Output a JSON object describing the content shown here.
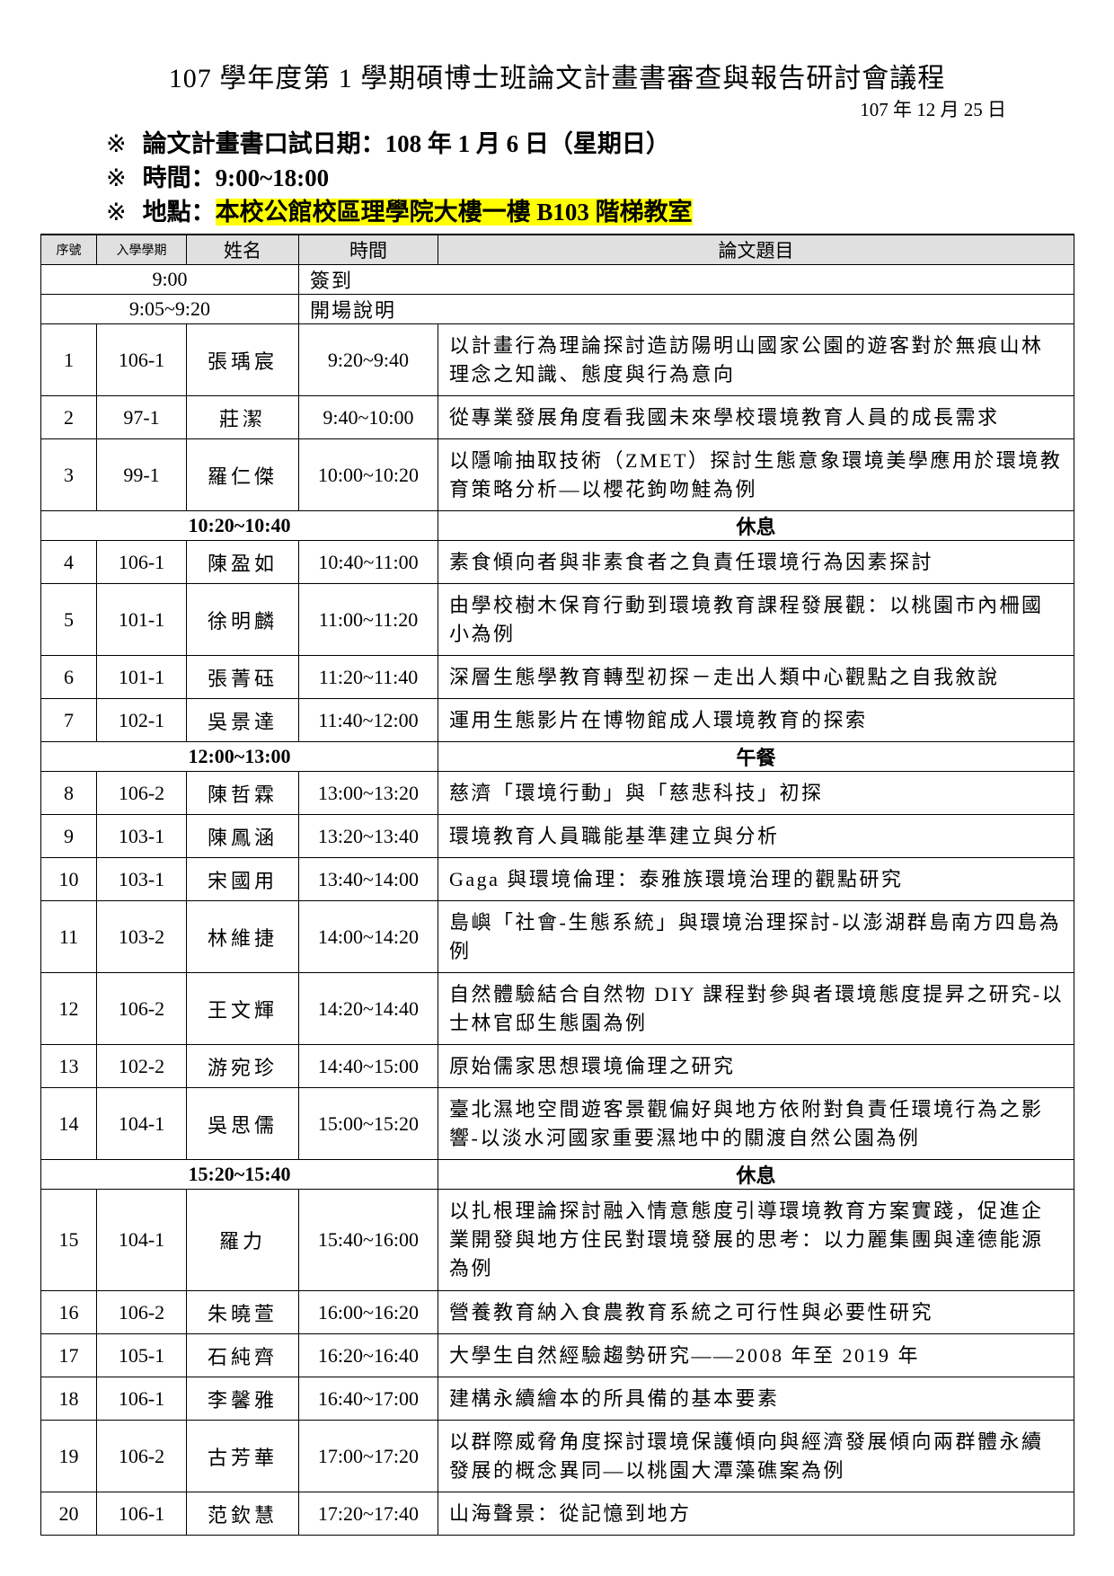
{
  "header": {
    "title": "107 學年度第 1 學期碩博士班論文計畫書審查與報告研討會議程",
    "date": "107 年 12 月 25 日",
    "notes": [
      {
        "mark": "※",
        "label": "論文計畫書口試日期：",
        "value": "108 年 1 月 6 日（星期日）"
      },
      {
        "mark": "※",
        "label": "時間：",
        "value": "9:00~18:00"
      },
      {
        "mark": "※",
        "label": "地點：",
        "value": "本校公館校區理學院大樓一樓 B103 階梯教室",
        "highlight": "#ffff00"
      }
    ]
  },
  "table": {
    "columns": [
      "序號",
      "入學學期",
      "姓名",
      "時間",
      "論文題目"
    ],
    "opening": [
      {
        "time": "9:00",
        "label": "簽到"
      },
      {
        "time": "9:05~9:20",
        "label": "開場說明"
      }
    ],
    "rows": [
      {
        "no": "1",
        "term": "106-1",
        "name": "張瑀宸",
        "time": "9:20~9:40",
        "title": "以計畫行為理論探討造訪陽明山國家公園的遊客對於無痕山林理念之知識、態度與行為意向"
      },
      {
        "no": "2",
        "term": "97-1",
        "name": "莊潔",
        "time": "9:40~10:00",
        "title": "從專業發展角度看我國未來學校環境教育人員的成長需求"
      },
      {
        "no": "3",
        "term": "99-1",
        "name": "羅仁傑",
        "time": "10:00~10:20",
        "title": "以隱喻抽取技術（ZMET）探討生態意象環境美學應用於環境教育策略分析—以櫻花鉤吻鮭為例"
      },
      {
        "break": true,
        "time": "10:20~10:40",
        "label": "休息"
      },
      {
        "no": "4",
        "term": "106-1",
        "name": "陳盈如",
        "time": "10:40~11:00",
        "title": "素食傾向者與非素食者之負責任環境行為因素探討"
      },
      {
        "no": "5",
        "term": "101-1",
        "name": "徐明麟",
        "time": "11:00~11:20",
        "title": "由學校樹木保育行動到環境教育課程發展觀：以桃園市內柵國小為例"
      },
      {
        "no": "6",
        "term": "101-1",
        "name": "張菁砡",
        "time": "11:20~11:40",
        "title": "深層生態學教育轉型初探－走出人類中心觀點之自我敘說"
      },
      {
        "no": "7",
        "term": "102-1",
        "name": "吳景達",
        "time": "11:40~12:00",
        "title": "運用生態影片在博物館成人環境教育的探索"
      },
      {
        "break": true,
        "time": "12:00~13:00",
        "label": "午餐"
      },
      {
        "no": "8",
        "term": "106-2",
        "name": "陳哲霖",
        "time": "13:00~13:20",
        "title": "慈濟「環境行動」與「慈悲科技」初探"
      },
      {
        "no": "9",
        "term": "103-1",
        "name": "陳鳳涵",
        "time": "13:20~13:40",
        "title": "環境教育人員職能基準建立與分析"
      },
      {
        "no": "10",
        "term": "103-1",
        "name": "宋國用",
        "time": "13:40~14:00",
        "title": "Gaga 與環境倫理：泰雅族環境治理的觀點研究"
      },
      {
        "no": "11",
        "term": "103-2",
        "name": "林維捷",
        "time": "14:00~14:20",
        "title": "島嶼「社會-生態系統」與環境治理探討-以澎湖群島南方四島為例"
      },
      {
        "no": "12",
        "term": "106-2",
        "name": "王文輝",
        "time": "14:20~14:40",
        "title": "自然體驗結合自然物 DIY 課程對參與者環境態度提昇之研究-以士林官邸生態園為例"
      },
      {
        "no": "13",
        "term": "102-2",
        "name": "游宛珍",
        "time": "14:40~15:00",
        "title": "原始儒家思想環境倫理之研究"
      },
      {
        "no": "14",
        "term": "104-1",
        "name": "吳思儒",
        "time": "15:00~15:20",
        "title": "臺北濕地空間遊客景觀偏好與地方依附對負責任環境行為之影響-以淡水河國家重要濕地中的關渡自然公園為例"
      },
      {
        "break": true,
        "time": "15:20~15:40",
        "label": "休息"
      },
      {
        "no": "15",
        "term": "104-1",
        "name": "羅力",
        "time": "15:40~16:00",
        "title": "以扎根理論探討融入情意態度引導環境教育方案實踐，促進企業開發與地方住民對環境發展的思考：以力麗集團與達德能源為例"
      },
      {
        "no": "16",
        "term": "106-2",
        "name": "朱曉萱",
        "time": "16:00~16:20",
        "title": "營養教育納入食農教育系統之可行性與必要性研究"
      },
      {
        "no": "17",
        "term": "105-1",
        "name": "石純齊",
        "time": "16:20~16:40",
        "title": "大學生自然經驗趨勢研究——2008 年至 2019 年"
      },
      {
        "no": "18",
        "term": "106-1",
        "name": "李馨雅",
        "time": "16:40~17:00",
        "title": "建構永續繪本的所具備的基本要素"
      },
      {
        "no": "19",
        "term": "106-2",
        "name": "古芳華",
        "time": "17:00~17:20",
        "title": "以群際威脅角度探討環境保護傾向與經濟發展傾向兩群體永續發展的概念異同—以桃園大潭藻礁案為例"
      },
      {
        "no": "20",
        "term": "106-1",
        "name": "范欽慧",
        "time": "17:20~17:40",
        "title": "山海聲景：從記憶到地方"
      }
    ]
  }
}
